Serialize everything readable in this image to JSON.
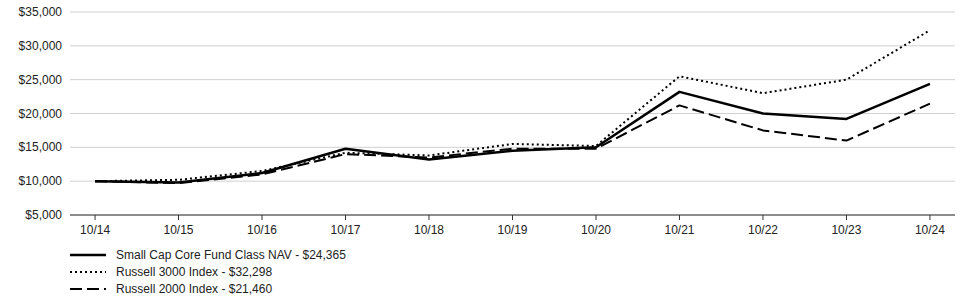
{
  "chart_data": {
    "type": "line",
    "categories": [
      "10/14",
      "10/15",
      "10/16",
      "10/17",
      "10/18",
      "10/19",
      "10/20",
      "10/21",
      "10/22",
      "10/23",
      "10/24"
    ],
    "series": [
      {
        "name": "Small Cap Core Fund Class NAV - $24,365",
        "color": "#000000",
        "line_style": "solid",
        "values": [
          10000,
          9800,
          11200,
          14800,
          13200,
          14500,
          15000,
          23200,
          20000,
          19200,
          24365
        ]
      },
      {
        "name": "Russell 3000 Index - $32,298",
        "color": "#000000",
        "line_style": "dotted",
        "values": [
          10000,
          10200,
          11500,
          14200,
          13800,
          15500,
          15200,
          25500,
          23000,
          25000,
          32298
        ]
      },
      {
        "name": "Russell 2000 Index - $21,460",
        "color": "#000000",
        "line_style": "dashed",
        "values": [
          10000,
          9700,
          11000,
          14000,
          13500,
          14800,
          14800,
          21200,
          17500,
          16000,
          21460
        ]
      }
    ],
    "ylim": [
      5000,
      35000
    ],
    "yticks": [
      {
        "value": 5000,
        "label": "$5,000"
      },
      {
        "value": 10000,
        "label": "$10,000"
      },
      {
        "value": 15000,
        "label": "$15,000"
      },
      {
        "value": 20000,
        "label": "$20,000"
      },
      {
        "value": 25000,
        "label": "$25,000"
      },
      {
        "value": 30000,
        "label": "$30,000"
      },
      {
        "value": 35000,
        "label": "$35,000"
      }
    ],
    "grid": true,
    "legend": "lower left"
  }
}
